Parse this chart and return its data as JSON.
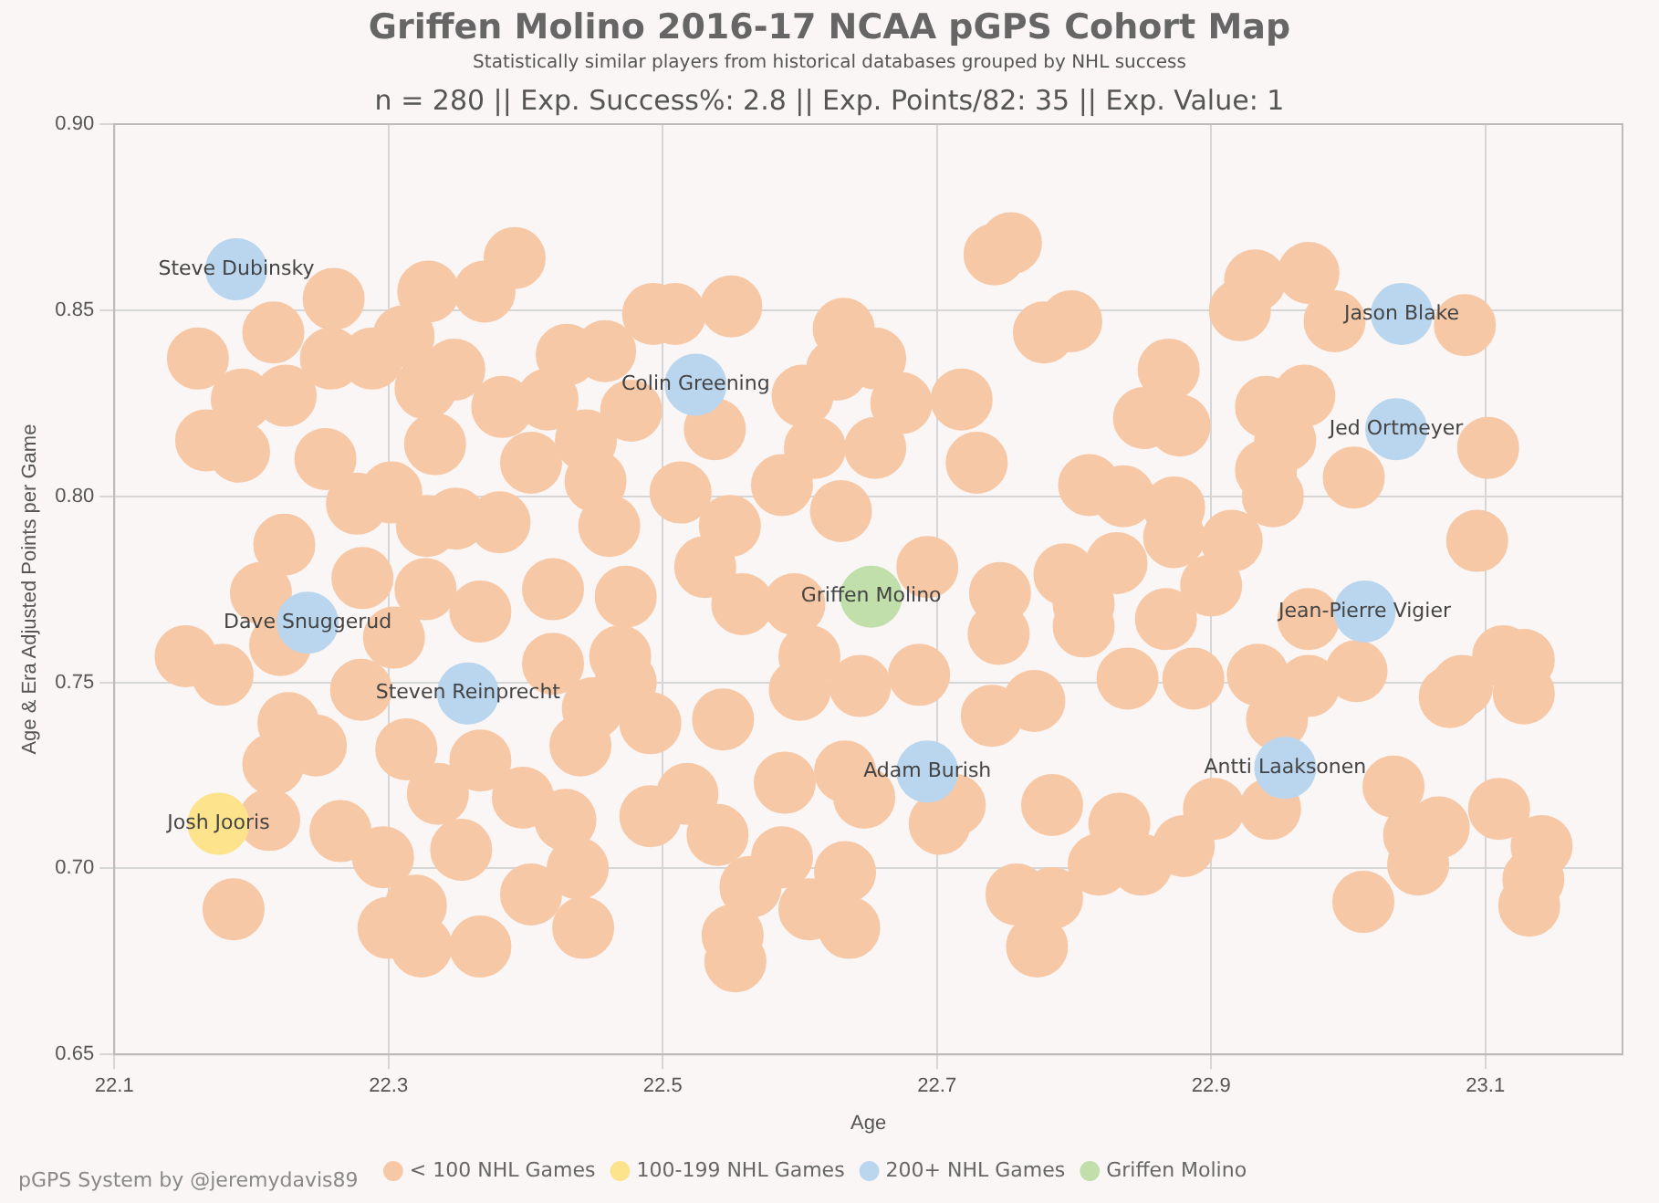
{
  "chart_data": {
    "type": "scatter",
    "title": "Griffen Molino 2016-17 NCAA pGPS Cohort Map",
    "subtitle": "Statistically similar players from historical databases grouped by NHL success",
    "annotations": [
      "n = 280 || Exp. Success%: 2.8 || Exp. Points/82: 35 || Exp. Value: 1",
      "pGPS System by @jeremydavis89"
    ],
    "xlabel": "Age",
    "ylabel": "Age & Era Adjusted Points per Game",
    "xlim": [
      22.1,
      23.2
    ],
    "xticks": [
      22.1,
      22.3,
      22.5,
      22.7,
      22.9,
      23.1
    ],
    "ylim": [
      0.65,
      0.9
    ],
    "yticks": [
      0.65,
      {
        "value": 0.7,
        "label": "0.70"
      },
      0.75,
      {
        "value": 0.8,
        "label": "0.80"
      },
      0.85,
      {
        "value": 0.9,
        "label": "0.90"
      }
    ],
    "grid": true,
    "legend": "bottom",
    "marker": "circle",
    "series": [
      {
        "name": "< 100 NHL Games",
        "color": "#f7c8a6",
        "x": [
          22.26,
          22.37,
          22.392,
          22.329,
          22.216,
          22.161,
          22.258,
          22.288,
          22.311,
          22.193,
          22.225,
          22.327,
          22.348,
          22.383,
          22.43,
          22.458,
          22.493,
          22.416,
          22.477,
          22.444,
          22.167,
          22.191,
          22.254,
          22.277,
          22.302,
          22.334,
          22.404,
          22.451,
          22.328,
          22.349,
          22.381,
          22.461,
          22.224,
          22.281,
          22.327,
          22.207,
          22.42,
          22.367,
          22.473,
          22.55,
          22.742,
          22.754,
          22.632,
          22.655,
          22.627,
          22.602,
          22.674,
          22.718,
          22.778,
          22.798,
          22.869,
          22.851,
          22.877,
          22.611,
          22.655,
          22.729,
          22.587,
          22.63,
          22.811,
          22.836,
          22.873,
          22.873,
          22.693,
          22.746,
          22.793,
          22.831,
          22.807,
          22.9,
          22.509,
          22.538,
          22.513,
          22.549,
          22.531,
          22.558,
          22.596,
          22.152,
          22.179,
          22.221,
          22.28,
          22.304,
          22.227,
          22.247,
          22.216,
          22.213,
          22.265,
          22.296,
          22.187,
          22.313,
          22.336,
          22.367,
          22.398,
          22.429,
          22.449,
          22.44,
          22.491,
          22.473,
          22.353,
          22.438,
          22.32,
          22.3,
          22.324,
          22.367,
          22.404,
          22.442,
          22.491,
          22.469,
          22.42,
          22.745,
          22.807,
          22.867,
          22.839,
          22.887,
          22.74,
          22.771,
          22.687,
          22.644,
          22.6,
          22.607,
          22.633,
          22.647,
          22.702,
          22.713,
          22.784,
          22.833,
          22.849,
          22.818,
          22.758,
          22.784,
          22.773,
          22.633,
          22.636,
          22.587,
          22.607,
          22.564,
          22.551,
          22.553,
          22.589,
          22.544,
          22.518,
          22.54,
          22.932,
          22.971,
          22.921,
          22.99,
          23.085,
          22.94,
          22.968,
          22.954,
          22.94,
          22.945,
          23.004,
          23.044,
          23.102,
          23.094,
          22.915,
          22.971,
          22.934,
          22.971,
          23.006,
          22.948,
          23.113,
          23.128,
          23.128,
          23.074,
          23.083,
          22.943,
          22.902,
          22.88,
          23.033,
          23.048,
          23.051,
          23.066,
          23.11,
          23.141,
          23.135,
          23.132,
          23.011
        ],
        "values": [
          0.853,
          0.855,
          0.864,
          0.855,
          0.844,
          0.837,
          0.837,
          0.837,
          0.843,
          0.826,
          0.827,
          0.829,
          0.834,
          0.824,
          0.838,
          0.839,
          0.849,
          0.826,
          0.823,
          0.815,
          0.815,
          0.812,
          0.81,
          0.798,
          0.801,
          0.814,
          0.809,
          0.804,
          0.792,
          0.794,
          0.793,
          0.792,
          0.787,
          0.778,
          0.775,
          0.774,
          0.775,
          0.769,
          0.773,
          0.851,
          0.865,
          0.868,
          0.845,
          0.837,
          0.834,
          0.827,
          0.825,
          0.826,
          0.844,
          0.847,
          0.834,
          0.821,
          0.819,
          0.813,
          0.813,
          0.809,
          0.803,
          0.796,
          0.803,
          0.8,
          0.797,
          0.789,
          0.781,
          0.774,
          0.779,
          0.782,
          0.771,
          0.776,
          0.849,
          0.818,
          0.801,
          0.792,
          0.781,
          0.771,
          0.771,
          0.757,
          0.752,
          0.76,
          0.748,
          0.762,
          0.739,
          0.733,
          0.728,
          0.713,
          0.71,
          0.703,
          0.689,
          0.732,
          0.72,
          0.729,
          0.719,
          0.713,
          0.743,
          0.733,
          0.739,
          0.75,
          0.705,
          0.7,
          0.69,
          0.684,
          0.679,
          0.679,
          0.693,
          0.684,
          0.714,
          0.757,
          0.755,
          0.763,
          0.765,
          0.767,
          0.751,
          0.751,
          0.741,
          0.745,
          0.752,
          0.749,
          0.748,
          0.757,
          0.726,
          0.719,
          0.712,
          0.717,
          0.717,
          0.712,
          0.701,
          0.701,
          0.693,
          0.692,
          0.679,
          0.699,
          0.684,
          0.703,
          0.689,
          0.695,
          0.682,
          0.675,
          0.723,
          0.74,
          0.72,
          0.709,
          0.858,
          0.86,
          0.85,
          0.847,
          0.846,
          0.824,
          0.827,
          0.815,
          0.807,
          0.8,
          0.805,
          null,
          0.813,
          0.788,
          0.788,
          0.767,
          0.752,
          0.749,
          0.753,
          0.74,
          0.757,
          0.756,
          0.747,
          0.746,
          0.749,
          0.716,
          0.716,
          0.706,
          0.722,
          0.709,
          0.701,
          0.711,
          0.716,
          0.706,
          0.697,
          0.69,
          0.691
        ]
      },
      {
        "name": "100-199 NHL Games",
        "color": "#fde38c",
        "x": [
          22.176
        ],
        "values": [
          0.712
        ],
        "value_labels": [
          "Josh Jooris"
        ]
      },
      {
        "name": "200+ NHL Games",
        "color": "#bad6ef",
        "x": [
          22.189,
          22.524,
          23.039,
          23.035,
          23.012,
          22.954,
          22.693,
          22.358,
          22.241
        ],
        "values": [
          0.861,
          0.83,
          0.849,
          0.818,
          0.769,
          0.727,
          0.726,
          0.747,
          0.766
        ],
        "value_labels": [
          "Steve Dubinsky",
          "Colin Greening",
          "Jason Blake",
          "Jed Ortmeyer",
          "Jean-Pierre Vigier",
          "Antti Laaksonen",
          "Adam Burish",
          "Steven Reinprecht",
          "Dave Snuggerud"
        ]
      },
      {
        "name": "Griffen Molino",
        "color": "#c0dfaa",
        "x": [
          22.652
        ],
        "values": [
          0.773
        ],
        "value_labels": [
          "Griffen Molino"
        ]
      }
    ]
  }
}
